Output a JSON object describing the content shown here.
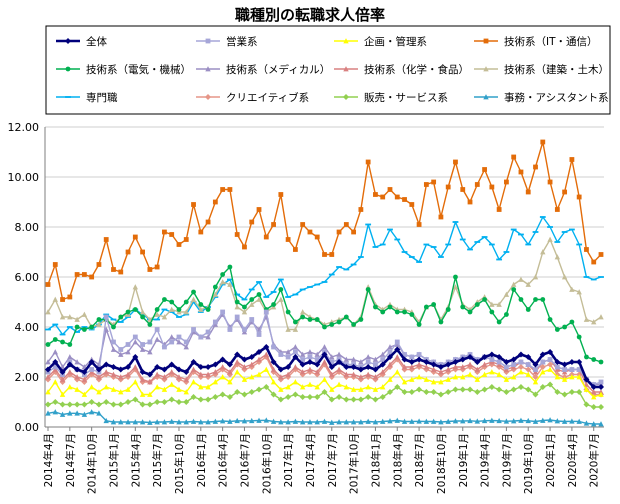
{
  "chart_data": {
    "type": "line",
    "title": "職種別の転職求人倍率",
    "ylim": [
      0,
      12
    ],
    "yticks": [
      "0.00",
      "2.00",
      "4.00",
      "6.00",
      "8.00",
      "10.00",
      "12.00"
    ],
    "xtick_labels": [
      "2014年4月",
      "2014年7月",
      "2014年10月",
      "2015年1月",
      "2015年4月",
      "2015年7月",
      "2015年10月",
      "2016年1月",
      "2016年4月",
      "2016年7月",
      "2016年10月",
      "2017年1月",
      "2017年4月",
      "2017年7月",
      "2017年10月",
      "2018年1月",
      "2018年4月",
      "2018年7月",
      "2018年10月",
      "2019年1月",
      "2019年4月",
      "2019年7月",
      "2019年10月",
      "2020年1月",
      "2020年4月",
      "2020年7月"
    ],
    "xtick_step": 3,
    "n_points": 77,
    "series": [
      {
        "name": "全体",
        "color": "#00007b",
        "marker": "diamond",
        "width": 2.6,
        "values": [
          2.3,
          2.6,
          2.2,
          2.5,
          2.3,
          2.2,
          2.6,
          2.3,
          2.5,
          2.4,
          2.3,
          2.4,
          2.8,
          2.2,
          2.1,
          2.4,
          2.3,
          2.5,
          2.3,
          2.2,
          2.6,
          2.4,
          2.4,
          2.5,
          2.7,
          2.5,
          2.9,
          2.7,
          2.8,
          3.0,
          3.2,
          2.6,
          2.3,
          2.4,
          2.8,
          2.5,
          2.6,
          2.5,
          2.9,
          2.4,
          2.6,
          2.4,
          2.4,
          2.3,
          2.4,
          2.3,
          2.5,
          2.8,
          3.1,
          2.7,
          2.6,
          2.7,
          2.6,
          2.5,
          2.4,
          2.5,
          2.6,
          2.7,
          2.8,
          2.6,
          2.8,
          2.9,
          2.8,
          2.6,
          2.7,
          2.9,
          2.8,
          2.5,
          2.9,
          3.0,
          2.6,
          2.5,
          2.6,
          2.6,
          1.9,
          1.6,
          1.6
        ]
      },
      {
        "name": "営業系",
        "color": "#a6a6d8",
        "marker": "square",
        "width": 1.4,
        "values": [
          2.2,
          2.4,
          2.1,
          2.6,
          2.3,
          2.1,
          2.3,
          2.2,
          4.4,
          3.4,
          3.1,
          3.3,
          3.6,
          3.3,
          3.4,
          3.9,
          3.2,
          3.4,
          3.6,
          3.4,
          3.9,
          3.6,
          3.8,
          4.2,
          4.6,
          3.9,
          4.4,
          3.9,
          4.3,
          3.7,
          4.6,
          3.2,
          2.9,
          2.8,
          3.0,
          2.7,
          2.8,
          2.7,
          3.0,
          2.6,
          2.7,
          2.5,
          2.5,
          2.4,
          2.6,
          2.5,
          2.7,
          3.0,
          3.4,
          2.9,
          2.8,
          2.9,
          2.7,
          2.6,
          2.5,
          2.6,
          2.7,
          2.8,
          2.9,
          2.7,
          2.8,
          2.7,
          2.6,
          2.4,
          2.5,
          2.6,
          2.5,
          2.3,
          2.6,
          2.7,
          2.4,
          2.3,
          2.3,
          2.3,
          1.9,
          1.7,
          1.8
        ]
      },
      {
        "name": "企画・管理系",
        "color": "#ffff00",
        "marker": "triangle",
        "width": 1.4,
        "values": [
          1.4,
          1.8,
          1.3,
          1.6,
          1.5,
          1.3,
          1.6,
          1.4,
          1.6,
          1.5,
          1.4,
          1.5,
          1.8,
          1.3,
          1.3,
          1.6,
          1.5,
          1.7,
          1.5,
          1.4,
          1.8,
          1.6,
          1.6,
          1.8,
          2.0,
          1.8,
          2.2,
          1.9,
          2.0,
          2.1,
          2.3,
          1.8,
          1.5,
          1.6,
          1.8,
          1.6,
          1.7,
          1.6,
          1.9,
          1.5,
          1.7,
          1.6,
          1.5,
          1.5,
          1.6,
          1.5,
          1.6,
          1.9,
          2.2,
          1.8,
          1.9,
          2.0,
          1.9,
          1.8,
          1.8,
          1.9,
          2.0,
          2.0,
          2.1,
          1.9,
          2.1,
          2.2,
          2.1,
          1.9,
          2.0,
          2.2,
          2.1,
          1.8,
          2.2,
          2.3,
          2.0,
          1.9,
          2.0,
          2.0,
          1.5,
          1.2,
          1.3
        ]
      },
      {
        "name": "技術系（IT・通信）",
        "color": "#e36c09",
        "marker": "square",
        "width": 1.4,
        "values": [
          5.7,
          6.5,
          5.1,
          5.2,
          6.1,
          6.1,
          6.0,
          6.5,
          7.5,
          6.3,
          6.2,
          7.0,
          7.6,
          7.0,
          6.3,
          6.4,
          7.8,
          7.7,
          7.3,
          7.5,
          8.9,
          7.8,
          8.2,
          9.0,
          9.5,
          9.5,
          7.7,
          7.2,
          8.2,
          8.7,
          7.6,
          8.1,
          9.3,
          7.5,
          7.1,
          8.1,
          7.8,
          7.6,
          6.9,
          6.9,
          7.8,
          8.1,
          7.8,
          8.7,
          10.6,
          9.3,
          9.2,
          9.5,
          9.2,
          9.1,
          8.9,
          8.1,
          9.7,
          9.8,
          8.4,
          9.6,
          10.6,
          9.5,
          9.0,
          9.7,
          10.3,
          9.6,
          8.7,
          9.8,
          10.8,
          10.2,
          9.4,
          10.4,
          11.4,
          9.8,
          8.7,
          9.4,
          10.7,
          9.2,
          7.1,
          6.6,
          6.9
        ]
      },
      {
        "name": "技術系（電気・機械）",
        "color": "#00b050",
        "marker": "circle",
        "width": 1.4,
        "values": [
          3.3,
          3.5,
          3.4,
          3.3,
          4.0,
          3.9,
          4.0,
          4.3,
          4.3,
          4.0,
          4.4,
          4.6,
          4.7,
          4.4,
          4.1,
          4.7,
          5.1,
          5.0,
          4.7,
          5.0,
          5.4,
          4.9,
          4.7,
          5.6,
          6.1,
          6.4,
          5.0,
          4.8,
          5.1,
          5.3,
          4.7,
          4.9,
          5.5,
          4.6,
          4.2,
          4.4,
          4.3,
          4.3,
          4.0,
          4.1,
          4.2,
          4.4,
          4.1,
          4.3,
          5.5,
          4.8,
          4.6,
          4.8,
          4.6,
          4.6,
          4.5,
          4.1,
          4.8,
          4.9,
          4.2,
          4.7,
          6.0,
          4.8,
          4.6,
          4.9,
          5.1,
          4.6,
          4.2,
          4.5,
          5.5,
          5.1,
          4.7,
          5.1,
          5.1,
          4.3,
          3.9,
          4.0,
          4.2,
          3.6,
          2.8,
          2.7,
          2.6
        ]
      },
      {
        "name": "技術系（メディカル）",
        "color": "#9b8fc4",
        "marker": "triangle",
        "width": 1.4,
        "values": [
          2.6,
          3.0,
          2.4,
          2.8,
          2.6,
          2.4,
          2.7,
          2.5,
          3.9,
          3.1,
          2.9,
          3.0,
          3.4,
          3.1,
          3.0,
          3.5,
          3.3,
          3.6,
          3.4,
          3.2,
          3.8,
          3.6,
          3.6,
          4.1,
          4.5,
          4.0,
          4.3,
          3.8,
          4.2,
          3.9,
          4.4,
          3.3,
          3.0,
          3.0,
          3.2,
          2.9,
          3.0,
          2.9,
          3.2,
          2.8,
          2.9,
          2.7,
          2.7,
          2.6,
          2.8,
          2.7,
          2.9,
          3.2,
          3.3,
          2.9,
          2.8,
          2.9,
          2.7,
          2.6,
          2.5,
          2.6,
          2.7,
          2.8,
          2.9,
          2.7,
          2.8,
          2.7,
          2.6,
          2.4,
          2.5,
          2.6,
          2.5,
          2.3,
          2.6,
          2.7,
          2.4,
          2.3,
          2.3,
          2.3,
          1.9,
          1.7,
          1.7
        ]
      },
      {
        "name": "技術系（化学・食品）",
        "color": "#d98080",
        "marker": "triangle",
        "width": 1.4,
        "values": [
          2.0,
          2.3,
          1.9,
          2.2,
          2.0,
          1.9,
          2.2,
          2.0,
          2.2,
          2.1,
          2.0,
          2.1,
          2.4,
          1.9,
          1.8,
          2.1,
          2.0,
          2.2,
          2.0,
          1.9,
          2.3,
          2.1,
          2.1,
          2.2,
          2.4,
          2.2,
          2.6,
          2.4,
          2.5,
          2.7,
          2.9,
          2.3,
          2.0,
          2.1,
          2.4,
          2.2,
          2.3,
          2.2,
          2.6,
          2.1,
          2.3,
          2.1,
          2.1,
          2.0,
          2.1,
          2.0,
          2.2,
          2.5,
          2.8,
          2.4,
          2.4,
          2.5,
          2.4,
          2.3,
          2.2,
          2.3,
          2.4,
          2.4,
          2.5,
          2.3,
          2.5,
          2.6,
          2.5,
          2.3,
          2.4,
          2.6,
          2.5,
          2.2,
          2.6,
          2.7,
          2.3,
          2.2,
          2.3,
          2.3,
          1.7,
          1.4,
          1.4
        ]
      },
      {
        "name": "技術系（建築・土木）",
        "color": "#c4bd97",
        "marker": "triangle",
        "width": 1.4,
        "values": [
          4.6,
          5.1,
          4.4,
          4.4,
          4.3,
          4.5,
          4.0,
          4.1,
          4.3,
          4.1,
          4.4,
          4.5,
          5.6,
          4.6,
          4.3,
          4.5,
          4.4,
          4.7,
          4.6,
          4.6,
          5.1,
          4.7,
          4.8,
          5.3,
          5.8,
          5.7,
          4.8,
          4.6,
          4.9,
          5.1,
          4.6,
          4.8,
          5.1,
          3.9,
          3.9,
          4.6,
          4.4,
          4.3,
          4.1,
          4.2,
          4.3,
          4.4,
          4.1,
          4.4,
          5.6,
          4.9,
          4.7,
          4.9,
          4.7,
          4.7,
          4.6,
          4.2,
          4.8,
          4.9,
          4.3,
          4.8,
          5.6,
          4.9,
          4.7,
          5.0,
          5.2,
          4.9,
          4.9,
          5.3,
          5.7,
          5.9,
          5.7,
          6.0,
          7.0,
          7.5,
          6.8,
          6.0,
          5.5,
          5.4,
          4.3,
          4.2,
          4.4
        ]
      },
      {
        "name": "専門職",
        "color": "#00b0f0",
        "marker": "dash",
        "width": 1.4,
        "values": [
          3.9,
          4.1,
          3.7,
          4.0,
          3.8,
          4.0,
          3.9,
          4.1,
          4.5,
          4.3,
          4.2,
          4.4,
          4.7,
          4.5,
          4.3,
          4.3,
          4.7,
          4.6,
          4.4,
          4.5,
          5.0,
          4.6,
          4.8,
          5.2,
          5.7,
          5.9,
          5.3,
          5.1,
          5.5,
          5.8,
          5.2,
          5.4,
          5.9,
          5.2,
          5.3,
          5.5,
          5.6,
          5.7,
          5.8,
          6.1,
          6.4,
          6.3,
          6.5,
          6.8,
          8.1,
          7.2,
          7.3,
          7.9,
          7.5,
          7.0,
          6.8,
          6.6,
          7.3,
          7.2,
          6.8,
          7.3,
          8.2,
          7.5,
          7.1,
          7.4,
          7.6,
          7.3,
          6.7,
          7.0,
          7.9,
          7.7,
          7.3,
          7.8,
          8.4,
          8.0,
          7.4,
          7.8,
          7.9,
          7.3,
          6.0,
          5.9,
          6.0
        ]
      },
      {
        "name": "クリエイティブ系",
        "color": "#e69688",
        "marker": "diamond",
        "width": 1.4,
        "values": [
          1.9,
          2.2,
          1.8,
          2.1,
          1.9,
          1.8,
          2.1,
          1.9,
          2.1,
          2.0,
          1.9,
          2.0,
          2.3,
          1.8,
          1.8,
          2.0,
          1.9,
          2.1,
          1.9,
          1.8,
          2.2,
          2.0,
          2.0,
          2.1,
          2.3,
          2.1,
          2.5,
          2.3,
          2.4,
          2.6,
          2.8,
          2.2,
          1.9,
          2.0,
          2.3,
          2.1,
          2.2,
          2.1,
          2.5,
          2.0,
          2.2,
          2.0,
          2.0,
          1.9,
          2.0,
          1.9,
          2.1,
          2.4,
          2.7,
          2.3,
          2.3,
          2.4,
          2.3,
          2.2,
          2.1,
          2.2,
          2.3,
          2.3,
          2.4,
          2.2,
          2.4,
          2.5,
          2.4,
          2.2,
          2.3,
          2.4,
          2.3,
          2.0,
          2.4,
          2.5,
          2.1,
          2.0,
          2.1,
          2.1,
          1.5,
          1.3,
          1.3
        ]
      },
      {
        "name": "販売・サービス系",
        "color": "#92d050",
        "marker": "diamond",
        "width": 1.4,
        "values": [
          0.9,
          1.0,
          0.9,
          0.9,
          0.9,
          0.9,
          1.0,
          0.9,
          1.0,
          0.9,
          0.9,
          1.0,
          1.1,
          0.9,
          0.9,
          1.0,
          1.0,
          1.1,
          1.0,
          1.0,
          1.2,
          1.1,
          1.1,
          1.2,
          1.3,
          1.2,
          1.4,
          1.3,
          1.4,
          1.5,
          1.6,
          1.3,
          1.1,
          1.2,
          1.3,
          1.2,
          1.2,
          1.2,
          1.4,
          1.1,
          1.2,
          1.1,
          1.1,
          1.1,
          1.2,
          1.1,
          1.2,
          1.4,
          1.6,
          1.4,
          1.4,
          1.5,
          1.4,
          1.4,
          1.3,
          1.4,
          1.5,
          1.5,
          1.5,
          1.4,
          1.5,
          1.6,
          1.5,
          1.4,
          1.5,
          1.6,
          1.5,
          1.3,
          1.6,
          1.7,
          1.4,
          1.3,
          1.4,
          1.4,
          0.9,
          0.8,
          0.8
        ]
      },
      {
        "name": "事務・アシスタント系",
        "color": "#31a0c9",
        "marker": "triangle",
        "width": 1.4,
        "values": [
          0.55,
          0.6,
          0.5,
          0.55,
          0.55,
          0.5,
          0.6,
          0.55,
          0.25,
          0.2,
          0.2,
          0.2,
          0.2,
          0.2,
          0.18,
          0.2,
          0.2,
          0.22,
          0.2,
          0.2,
          0.22,
          0.2,
          0.2,
          0.22,
          0.24,
          0.22,
          0.25,
          0.24,
          0.25,
          0.26,
          0.27,
          0.22,
          0.2,
          0.2,
          0.22,
          0.2,
          0.2,
          0.2,
          0.22,
          0.18,
          0.2,
          0.2,
          0.2,
          0.2,
          0.22,
          0.2,
          0.22,
          0.24,
          0.26,
          0.22,
          0.22,
          0.23,
          0.22,
          0.22,
          0.2,
          0.22,
          0.24,
          0.24,
          0.25,
          0.23,
          0.25,
          0.26,
          0.25,
          0.23,
          0.24,
          0.26,
          0.25,
          0.22,
          0.26,
          0.28,
          0.24,
          0.22,
          0.23,
          0.22,
          0.15,
          0.12,
          0.12
        ]
      }
    ]
  }
}
